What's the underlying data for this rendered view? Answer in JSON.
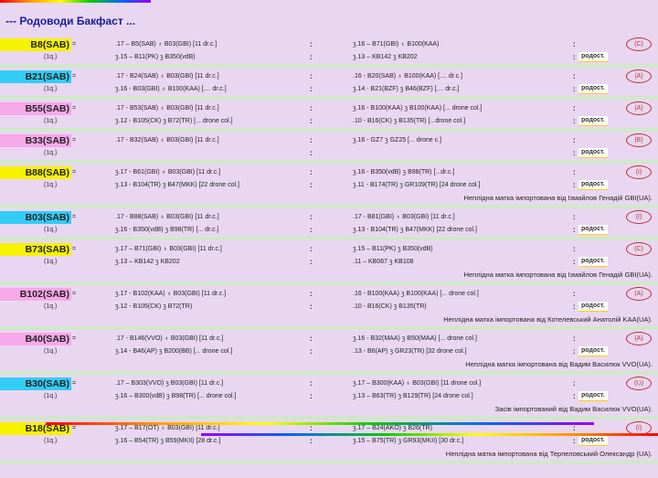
{
  "title": "--- Родоводи Бакфаст ...",
  "colors": {
    "yellow": "#f7f200",
    "cyan": "#33ccf5",
    "pink": "#f7a8e8",
    "green": "#a8f04a"
  },
  "pedigree_label": "родост.",
  "entries": [
    {
      "code": "B8(SAB)",
      "hl": "yellow",
      "sub": "(1q.)",
      "m1": ".17 – B5(SAB) ♁ B03(GBI)  [11 dr.c.]",
      "f1": "ꝫ.16 – B71(GBI) ♁ B100(KAA)",
      "m2": "ꝫ.15 – B11(PK) ꝫ B350(vdB)",
      "f2": "ꝫ.13 – KB142 ꝫ KB202",
      "tag": "(C)",
      "note": ""
    },
    {
      "code": "B21(SAB)",
      "hl": "cyan",
      "sub": "(1q.)",
      "m1": ".17 - B24(SAB) ♁ B03(GBI)  [11 dr.c.]",
      "f1": ".16 - B20(SAB) ♁ B100(KAA)  [.... dr.c.]",
      "m2": "ꝫ.16 - B03(GBI) ♁ B100(KAA)  [.... dr.c.]",
      "f2": "ꝫ.14 - B21(BZF) ꝫ B46(BZF)  [.... dr.c.]",
      "tag": "(A)",
      "note": ""
    },
    {
      "code": "B55(SAB)",
      "hl": "pink",
      "sub": "(1q.)",
      "m1": ".17 - B53(SAB) ♁ B03(GBI)  [11 dr.c.]",
      "f1": "ꝫ.16 - B100(KAA) ꝫ B100(KAA)  [... drone col.]",
      "m2": "ꝫ.12 - B105(CK) ꝫ B72(TR)  [... drone col.]",
      "f2": ".10 - B16(CK) ꝫ B135(TR)  [...drone col.]",
      "tag": "(A)",
      "note": ""
    },
    {
      "code": "B33(SAB)",
      "hl": "pink",
      "sub": "(1q.)",
      "m1": ".17 - B32(SAB) ♁ B03(GBI)  [11 dr.c.]",
      "f1": "ꝫ.16 - GZ7 ꝫ GZ25  [... drone c.]",
      "m2": "",
      "f2": "",
      "tag": "(B)",
      "note": ""
    },
    {
      "code": "B88(SAB)",
      "hl": "yellow",
      "sub": "(1q.)",
      "m1": "ꝫ.17 - B61(GBI) ♁ B03(GBI)  [11 dr.c.]",
      "f1": "ꝫ.16 - B350(vdB) ꝫ B98(TR)  [...dr.c.]",
      "m2": "ꝫ.13 - B104(TR) ꝫ B47(MKK)  [22 drone col.]",
      "f2": "ꝫ.11 - B174(TR) ꝫ GR109(TR)  [24 drone col.]",
      "tag": "(I)",
      "note": "Неплідна матка імпортована від Ізмайлов Генадій GBI(UA)."
    },
    {
      "code": "B03(SAB)",
      "hl": "cyan",
      "sub": "(1q.)",
      "m1": ".17 - B88(SAB) ♁ B03(GBI)  [11 dr.c.]",
      "f1": ".17 - B81(GBI) ♁ B03(GBI)  [11 dr.c.]",
      "m2": "ꝫ.16 - B350(vdB) ꝫ B98(TR)  [... dr.c.]",
      "f2": "ꝫ.13 - B104(TR) ꝫ B47(MKK)  [22 drone col.]",
      "tag": "(I)",
      "note": ""
    },
    {
      "code": "B73(SAB)",
      "hl": "yellow",
      "sub": "(1q.)",
      "m1": "ꝫ.17 – B71(GBI) ♁ B03(GBI)  [11 dr.c.]",
      "f1": "ꝫ.15 – B11(PK) ꝫ B350(vdB)",
      "m2": "ꝫ.13 – KB142 ꝫ KB202",
      "f2": ".11 – KB067 ꝫ KB108",
      "tag": "(C)",
      "note": "Неплідна матка імпортована від Ізмайлов Генадій GBI(UA)."
    },
    {
      "code": "B102(SAB)",
      "hl": "pink",
      "sub": "(1q.)",
      "m1": "ꝫ.17 - B102(KAA) ♁ B03(GBI)  [11 dr.c.]",
      "f1": ".16 - B100(KAA) ꝫ B100(KAA)  [... drone col.]",
      "m2": "ꝫ.12 - B105(CK) ꝫ B72(TR)",
      "f2": ".10 - B16(CK) ꝫ B135(TR)",
      "tag": "(A)",
      "note": "Неплідна матка імпортована від Котелевський Анатолій KAA(UA)."
    },
    {
      "code": "B40(SAB)",
      "hl": "pink",
      "sub": "(1q.)",
      "m1": ".17 - B146(VVO) ♁ B03(GBI)  [11 dr.c.]",
      "f1": "ꝫ.16 - B32(MAA) ꝫ B50(MAA)  [... drone col.]",
      "m2": "ꝫ.14 - B46(AP) ꝫ B200(BB)  [... drone col.]",
      "f2": ".13 - B6(AP) ꝫ GR23(TR)  [32 drone col.]",
      "tag": "(A)",
      "note": "Неплідна матка імпортована від Вадим Василюк VVO(UA)."
    },
    {
      "code": "B30(SAB)",
      "hl": "cyan",
      "sub": "(1q.)",
      "m1": ".17 – B303(VVO) ꝫ B03(GBI)  [11 dr.c.]",
      "f1": "ꝫ.17 – B300(KAA) ♁ B03(GBI)  [11 drone col.]",
      "m2": "ꝫ.16 – B300(vdB) ꝫ B98(TR)  [... drone col.]",
      "f2": "ꝫ.13 – B63(TR) ꝫ B129(TR)  [24 drone col.]",
      "tag": "(I,i)",
      "note": "Засів імпортований від Вадим Василюк VVO(UA)."
    },
    {
      "code": "B18(SAB)",
      "hl": "yellow",
      "sub": "(1q.)",
      "m1": "ꝫ.17 – B17(OT) ♁ B03(GBI)  [11 dr.c.]",
      "f1": "ꝫ.17 – B24(AKO) ꝫ B26(TR)",
      "m2": "ꝫ.16 – B54(TR) ꝫ B59(MKII)  [28 dr.c.]",
      "f2": "ꝫ.15 – B75(TR) ꝫ GR93(MKII)  [30 dr.c.]",
      "tag": "(I)",
      "note": "Неплідна матка імпортована від Терпеловський Олександр (UA)."
    }
  ]
}
